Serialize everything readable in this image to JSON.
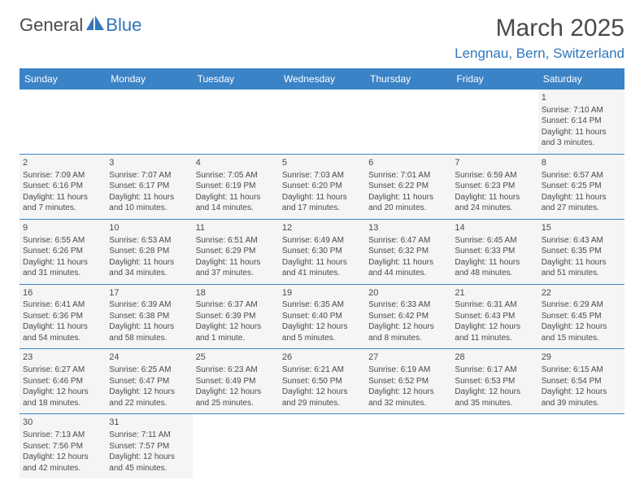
{
  "logo": {
    "part1": "General",
    "part2": "Blue"
  },
  "title": "March 2025",
  "location": "Lengnau, Bern, Switzerland",
  "days": [
    "Sunday",
    "Monday",
    "Tuesday",
    "Wednesday",
    "Thursday",
    "Friday",
    "Saturday"
  ],
  "colors": {
    "header_bg": "#3b83c7",
    "accent": "#2f76bd",
    "text": "#4a4a4a",
    "cell_bg": "#f5f5f5"
  },
  "weeks": [
    [
      null,
      null,
      null,
      null,
      null,
      null,
      {
        "n": "1",
        "sr": "Sunrise: 7:10 AM",
        "ss": "Sunset: 6:14 PM",
        "dl": "Daylight: 11 hours and 3 minutes."
      }
    ],
    [
      {
        "n": "2",
        "sr": "Sunrise: 7:09 AM",
        "ss": "Sunset: 6:16 PM",
        "dl": "Daylight: 11 hours and 7 minutes."
      },
      {
        "n": "3",
        "sr": "Sunrise: 7:07 AM",
        "ss": "Sunset: 6:17 PM",
        "dl": "Daylight: 11 hours and 10 minutes."
      },
      {
        "n": "4",
        "sr": "Sunrise: 7:05 AM",
        "ss": "Sunset: 6:19 PM",
        "dl": "Daylight: 11 hours and 14 minutes."
      },
      {
        "n": "5",
        "sr": "Sunrise: 7:03 AM",
        "ss": "Sunset: 6:20 PM",
        "dl": "Daylight: 11 hours and 17 minutes."
      },
      {
        "n": "6",
        "sr": "Sunrise: 7:01 AM",
        "ss": "Sunset: 6:22 PM",
        "dl": "Daylight: 11 hours and 20 minutes."
      },
      {
        "n": "7",
        "sr": "Sunrise: 6:59 AM",
        "ss": "Sunset: 6:23 PM",
        "dl": "Daylight: 11 hours and 24 minutes."
      },
      {
        "n": "8",
        "sr": "Sunrise: 6:57 AM",
        "ss": "Sunset: 6:25 PM",
        "dl": "Daylight: 11 hours and 27 minutes."
      }
    ],
    [
      {
        "n": "9",
        "sr": "Sunrise: 6:55 AM",
        "ss": "Sunset: 6:26 PM",
        "dl": "Daylight: 11 hours and 31 minutes."
      },
      {
        "n": "10",
        "sr": "Sunrise: 6:53 AM",
        "ss": "Sunset: 6:28 PM",
        "dl": "Daylight: 11 hours and 34 minutes."
      },
      {
        "n": "11",
        "sr": "Sunrise: 6:51 AM",
        "ss": "Sunset: 6:29 PM",
        "dl": "Daylight: 11 hours and 37 minutes."
      },
      {
        "n": "12",
        "sr": "Sunrise: 6:49 AM",
        "ss": "Sunset: 6:30 PM",
        "dl": "Daylight: 11 hours and 41 minutes."
      },
      {
        "n": "13",
        "sr": "Sunrise: 6:47 AM",
        "ss": "Sunset: 6:32 PM",
        "dl": "Daylight: 11 hours and 44 minutes."
      },
      {
        "n": "14",
        "sr": "Sunrise: 6:45 AM",
        "ss": "Sunset: 6:33 PM",
        "dl": "Daylight: 11 hours and 48 minutes."
      },
      {
        "n": "15",
        "sr": "Sunrise: 6:43 AM",
        "ss": "Sunset: 6:35 PM",
        "dl": "Daylight: 11 hours and 51 minutes."
      }
    ],
    [
      {
        "n": "16",
        "sr": "Sunrise: 6:41 AM",
        "ss": "Sunset: 6:36 PM",
        "dl": "Daylight: 11 hours and 54 minutes."
      },
      {
        "n": "17",
        "sr": "Sunrise: 6:39 AM",
        "ss": "Sunset: 6:38 PM",
        "dl": "Daylight: 11 hours and 58 minutes."
      },
      {
        "n": "18",
        "sr": "Sunrise: 6:37 AM",
        "ss": "Sunset: 6:39 PM",
        "dl": "Daylight: 12 hours and 1 minute."
      },
      {
        "n": "19",
        "sr": "Sunrise: 6:35 AM",
        "ss": "Sunset: 6:40 PM",
        "dl": "Daylight: 12 hours and 5 minutes."
      },
      {
        "n": "20",
        "sr": "Sunrise: 6:33 AM",
        "ss": "Sunset: 6:42 PM",
        "dl": "Daylight: 12 hours and 8 minutes."
      },
      {
        "n": "21",
        "sr": "Sunrise: 6:31 AM",
        "ss": "Sunset: 6:43 PM",
        "dl": "Daylight: 12 hours and 11 minutes."
      },
      {
        "n": "22",
        "sr": "Sunrise: 6:29 AM",
        "ss": "Sunset: 6:45 PM",
        "dl": "Daylight: 12 hours and 15 minutes."
      }
    ],
    [
      {
        "n": "23",
        "sr": "Sunrise: 6:27 AM",
        "ss": "Sunset: 6:46 PM",
        "dl": "Daylight: 12 hours and 18 minutes."
      },
      {
        "n": "24",
        "sr": "Sunrise: 6:25 AM",
        "ss": "Sunset: 6:47 PM",
        "dl": "Daylight: 12 hours and 22 minutes."
      },
      {
        "n": "25",
        "sr": "Sunrise: 6:23 AM",
        "ss": "Sunset: 6:49 PM",
        "dl": "Daylight: 12 hours and 25 minutes."
      },
      {
        "n": "26",
        "sr": "Sunrise: 6:21 AM",
        "ss": "Sunset: 6:50 PM",
        "dl": "Daylight: 12 hours and 29 minutes."
      },
      {
        "n": "27",
        "sr": "Sunrise: 6:19 AM",
        "ss": "Sunset: 6:52 PM",
        "dl": "Daylight: 12 hours and 32 minutes."
      },
      {
        "n": "28",
        "sr": "Sunrise: 6:17 AM",
        "ss": "Sunset: 6:53 PM",
        "dl": "Daylight: 12 hours and 35 minutes."
      },
      {
        "n": "29",
        "sr": "Sunrise: 6:15 AM",
        "ss": "Sunset: 6:54 PM",
        "dl": "Daylight: 12 hours and 39 minutes."
      }
    ],
    [
      {
        "n": "30",
        "sr": "Sunrise: 7:13 AM",
        "ss": "Sunset: 7:56 PM",
        "dl": "Daylight: 12 hours and 42 minutes."
      },
      {
        "n": "31",
        "sr": "Sunrise: 7:11 AM",
        "ss": "Sunset: 7:57 PM",
        "dl": "Daylight: 12 hours and 45 minutes."
      },
      null,
      null,
      null,
      null,
      null
    ]
  ]
}
